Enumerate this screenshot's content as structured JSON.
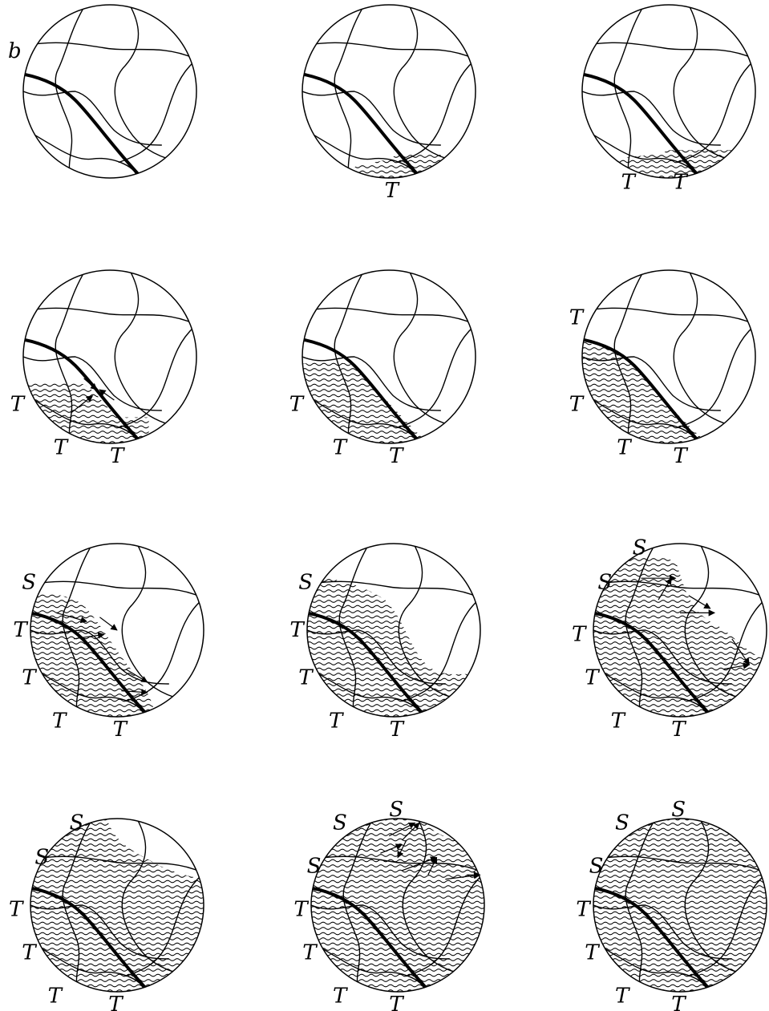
{
  "figure": {
    "panel_label": "b",
    "colors": {
      "ink": "#000000",
      "background": "#ffffff"
    },
    "panels": [
      {
        "fill": 0,
        "labels": [],
        "arrows": 0
      },
      {
        "fill": 1,
        "labels": [
          "T"
        ],
        "arrows": 0
      },
      {
        "fill": 2,
        "labels": [
          "T",
          "T"
        ],
        "arrows": 0
      },
      {
        "fill": 3,
        "labels": [
          "T",
          "T",
          "T"
        ],
        "arrows": 1
      },
      {
        "fill": 4,
        "labels": [
          "T",
          "T",
          "T"
        ],
        "arrows": 0
      },
      {
        "fill": 5,
        "labels": [
          "T",
          "T",
          "T",
          "T"
        ],
        "arrows": 0
      },
      {
        "fill": 6,
        "labels": [
          "S",
          "T",
          "T",
          "T",
          "T"
        ],
        "arrows": 1
      },
      {
        "fill": 7,
        "labels": [
          "S",
          "T",
          "T",
          "T",
          "T"
        ],
        "arrows": 0
      },
      {
        "fill": 8,
        "labels": [
          "S",
          "S",
          "T",
          "T",
          "T",
          "T"
        ],
        "arrows": 1
      },
      {
        "fill": 9,
        "labels": [
          "S",
          "S",
          "T",
          "T",
          "T",
          "T"
        ],
        "arrows": 0
      },
      {
        "fill": 10,
        "labels": [
          "S",
          "S",
          "S",
          "T",
          "T",
          "T",
          "T"
        ],
        "arrows": 1
      },
      {
        "fill": 11,
        "labels": [
          "S",
          "S",
          "S",
          "T",
          "T",
          "T",
          "T"
        ],
        "arrows": 0
      }
    ]
  }
}
